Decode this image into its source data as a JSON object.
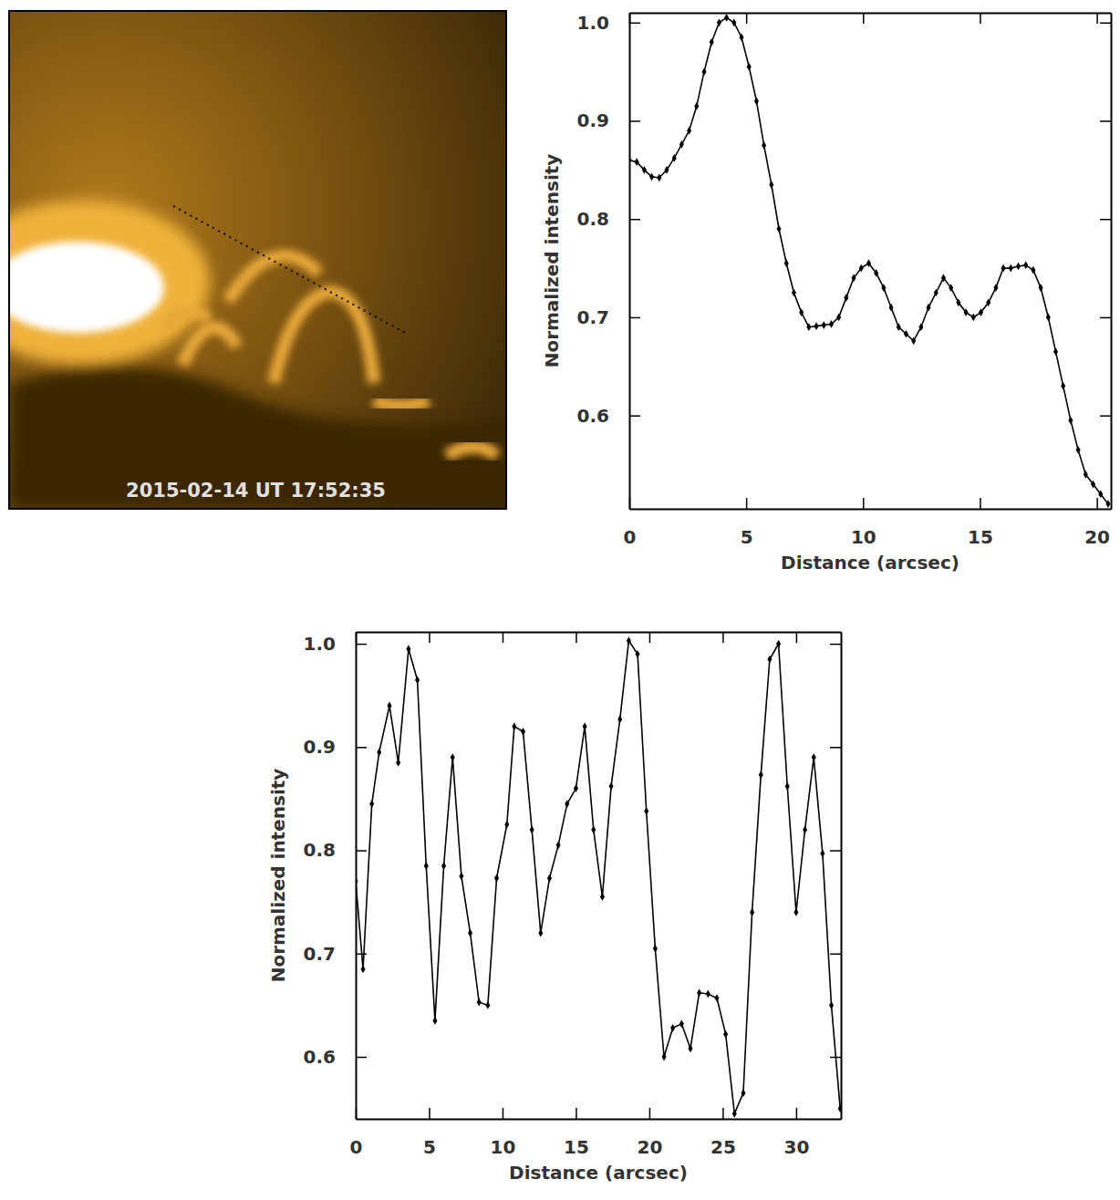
{
  "image": {
    "label": "2015-02-14 UT 17:52:35"
  },
  "chart_data": [
    {
      "type": "line",
      "x_label": "Distance (arcsec)",
      "y_label": "Normalized intensity",
      "color": "#000000",
      "marker": "diamond",
      "line_style": "solid",
      "x": [
        0,
        0.32,
        0.64,
        0.96,
        1.28,
        1.6,
        1.92,
        2.24,
        2.56,
        2.88,
        3.2,
        3.52,
        3.84,
        4.16,
        4.48,
        4.8,
        5.12,
        5.44,
        5.76,
        6.08,
        6.4,
        6.72,
        7.04,
        7.36,
        7.68,
        8,
        8.32,
        8.64,
        8.96,
        9.28,
        9.6,
        9.92,
        10.24,
        10.56,
        10.88,
        11.2,
        11.52,
        11.84,
        12.16,
        12.48,
        12.8,
        13.12,
        13.44,
        13.76,
        14.08,
        14.4,
        14.72,
        15.04,
        15.36,
        15.68,
        16,
        16.32,
        16.64,
        16.96,
        17.28,
        17.6,
        17.92,
        18.24,
        18.56,
        18.88,
        19.2,
        19.52,
        19.84,
        20.16,
        20.48
      ],
      "values": [
        0.86,
        0.858,
        0.85,
        0.843,
        0.842,
        0.85,
        0.862,
        0.876,
        0.89,
        0.915,
        0.95,
        0.98,
        1.0,
        1.005,
        1.0,
        0.985,
        0.955,
        0.92,
        0.875,
        0.835,
        0.79,
        0.755,
        0.725,
        0.705,
        0.69,
        0.691,
        0.692,
        0.693,
        0.7,
        0.72,
        0.74,
        0.75,
        0.755,
        0.745,
        0.73,
        0.71,
        0.69,
        0.683,
        0.676,
        0.69,
        0.71,
        0.725,
        0.74,
        0.73,
        0.715,
        0.705,
        0.7,
        0.705,
        0.715,
        0.73,
        0.75,
        0.75,
        0.752,
        0.753,
        0.748,
        0.73,
        0.7,
        0.665,
        0.63,
        0.595,
        0.565,
        0.54,
        0.53,
        0.52,
        0.51
      ],
      "xlim": [
        0,
        20.6
      ],
      "ylim": [
        0.505,
        1.01
      ],
      "xticks": [
        0,
        5,
        10,
        15,
        20
      ],
      "yticks": [
        0.6,
        0.7,
        0.8,
        0.9,
        {
          "value": 1,
          "label": "1.0"
        }
      ]
    },
    {
      "type": "line",
      "x_label": "Distance (arcsec)",
      "y_label": "Normalized intensity",
      "color": "#000000",
      "marker": "diamond",
      "line_style": "solid",
      "x": [
        0,
        0.5,
        1.1,
        1.6,
        2.3,
        2.9,
        3.6,
        4.2,
        4.8,
        5.4,
        6.0,
        6.6,
        7.2,
        7.8,
        8.4,
        9.0,
        9.6,
        10.3,
        10.8,
        11.4,
        12.0,
        12.6,
        13.2,
        13.8,
        14.4,
        15.0,
        15.6,
        16.2,
        16.8,
        17.4,
        18.0,
        18.6,
        19.2,
        19.8,
        20.4,
        21.0,
        21.6,
        22.2,
        22.8,
        23.4,
        24.0,
        24.6,
        25.2,
        25.8,
        26.4,
        27.0,
        27.6,
        28.2,
        28.8,
        29.4,
        30.0,
        30.6,
        31.2,
        31.8,
        32.4,
        33.0
      ],
      "values": [
        0.77,
        0.685,
        0.845,
        0.895,
        0.94,
        0.885,
        0.995,
        0.965,
        0.785,
        0.635,
        0.785,
        0.89,
        0.775,
        0.72,
        0.653,
        0.65,
        0.773,
        0.825,
        0.92,
        0.915,
        0.82,
        0.72,
        0.773,
        0.805,
        0.845,
        0.86,
        0.92,
        0.82,
        0.755,
        0.862,
        0.927,
        1.003,
        0.99,
        0.838,
        0.705,
        0.6,
        0.628,
        0.632,
        0.608,
        0.662,
        0.661,
        0.657,
        0.622,
        0.545,
        0.565,
        0.74,
        0.873,
        0.985,
        1.0,
        0.862,
        0.74,
        0.82,
        0.89,
        0.797,
        0.65,
        0.55
      ],
      "xlim": [
        0,
        33.05
      ],
      "ylim": [
        0.54,
        1.0115
      ],
      "xticks": [
        0,
        5,
        10,
        15,
        20,
        25,
        30
      ],
      "yticks": [
        0.6,
        0.7,
        0.8,
        0.9,
        {
          "value": 1,
          "label": "1.0"
        }
      ]
    }
  ]
}
